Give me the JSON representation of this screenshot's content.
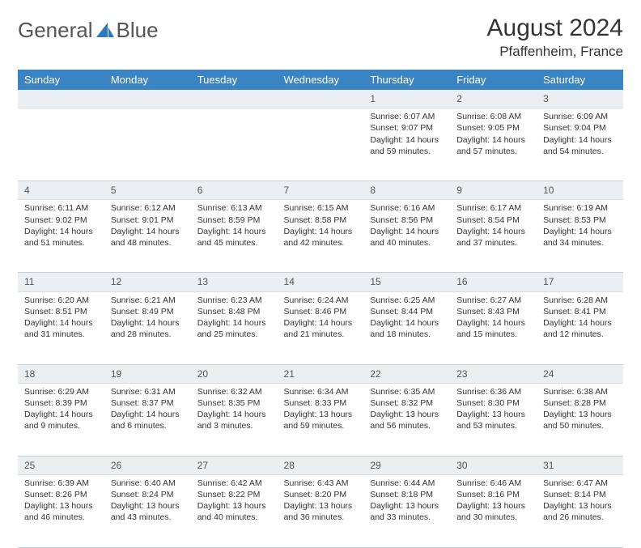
{
  "brand": {
    "word1": "General",
    "word2": "Blue"
  },
  "title": "August 2024",
  "location": "Pfaffenheim, France",
  "colors": {
    "header_bg": "#3a84c4",
    "daynum_bg": "#eceff2",
    "border": "#c9ced4",
    "text": "#333333",
    "logo_accent": "#2e79bd"
  },
  "day_headers": [
    "Sunday",
    "Monday",
    "Tuesday",
    "Wednesday",
    "Thursday",
    "Friday",
    "Saturday"
  ],
  "weeks": [
    [
      null,
      null,
      null,
      null,
      {
        "n": "1",
        "sunrise": "6:07 AM",
        "sunset": "9:07 PM",
        "dl": "14 hours and 59 minutes."
      },
      {
        "n": "2",
        "sunrise": "6:08 AM",
        "sunset": "9:05 PM",
        "dl": "14 hours and 57 minutes."
      },
      {
        "n": "3",
        "sunrise": "6:09 AM",
        "sunset": "9:04 PM",
        "dl": "14 hours and 54 minutes."
      }
    ],
    [
      {
        "n": "4",
        "sunrise": "6:11 AM",
        "sunset": "9:02 PM",
        "dl": "14 hours and 51 minutes."
      },
      {
        "n": "5",
        "sunrise": "6:12 AM",
        "sunset": "9:01 PM",
        "dl": "14 hours and 48 minutes."
      },
      {
        "n": "6",
        "sunrise": "6:13 AM",
        "sunset": "8:59 PM",
        "dl": "14 hours and 45 minutes."
      },
      {
        "n": "7",
        "sunrise": "6:15 AM",
        "sunset": "8:58 PM",
        "dl": "14 hours and 42 minutes."
      },
      {
        "n": "8",
        "sunrise": "6:16 AM",
        "sunset": "8:56 PM",
        "dl": "14 hours and 40 minutes."
      },
      {
        "n": "9",
        "sunrise": "6:17 AM",
        "sunset": "8:54 PM",
        "dl": "14 hours and 37 minutes."
      },
      {
        "n": "10",
        "sunrise": "6:19 AM",
        "sunset": "8:53 PM",
        "dl": "14 hours and 34 minutes."
      }
    ],
    [
      {
        "n": "11",
        "sunrise": "6:20 AM",
        "sunset": "8:51 PM",
        "dl": "14 hours and 31 minutes."
      },
      {
        "n": "12",
        "sunrise": "6:21 AM",
        "sunset": "8:49 PM",
        "dl": "14 hours and 28 minutes."
      },
      {
        "n": "13",
        "sunrise": "6:23 AM",
        "sunset": "8:48 PM",
        "dl": "14 hours and 25 minutes."
      },
      {
        "n": "14",
        "sunrise": "6:24 AM",
        "sunset": "8:46 PM",
        "dl": "14 hours and 21 minutes."
      },
      {
        "n": "15",
        "sunrise": "6:25 AM",
        "sunset": "8:44 PM",
        "dl": "14 hours and 18 minutes."
      },
      {
        "n": "16",
        "sunrise": "6:27 AM",
        "sunset": "8:43 PM",
        "dl": "14 hours and 15 minutes."
      },
      {
        "n": "17",
        "sunrise": "6:28 AM",
        "sunset": "8:41 PM",
        "dl": "14 hours and 12 minutes."
      }
    ],
    [
      {
        "n": "18",
        "sunrise": "6:29 AM",
        "sunset": "8:39 PM",
        "dl": "14 hours and 9 minutes."
      },
      {
        "n": "19",
        "sunrise": "6:31 AM",
        "sunset": "8:37 PM",
        "dl": "14 hours and 6 minutes."
      },
      {
        "n": "20",
        "sunrise": "6:32 AM",
        "sunset": "8:35 PM",
        "dl": "14 hours and 3 minutes."
      },
      {
        "n": "21",
        "sunrise": "6:34 AM",
        "sunset": "8:33 PM",
        "dl": "13 hours and 59 minutes."
      },
      {
        "n": "22",
        "sunrise": "6:35 AM",
        "sunset": "8:32 PM",
        "dl": "13 hours and 56 minutes."
      },
      {
        "n": "23",
        "sunrise": "6:36 AM",
        "sunset": "8:30 PM",
        "dl": "13 hours and 53 minutes."
      },
      {
        "n": "24",
        "sunrise": "6:38 AM",
        "sunset": "8:28 PM",
        "dl": "13 hours and 50 minutes."
      }
    ],
    [
      {
        "n": "25",
        "sunrise": "6:39 AM",
        "sunset": "8:26 PM",
        "dl": "13 hours and 46 minutes."
      },
      {
        "n": "26",
        "sunrise": "6:40 AM",
        "sunset": "8:24 PM",
        "dl": "13 hours and 43 minutes."
      },
      {
        "n": "27",
        "sunrise": "6:42 AM",
        "sunset": "8:22 PM",
        "dl": "13 hours and 40 minutes."
      },
      {
        "n": "28",
        "sunrise": "6:43 AM",
        "sunset": "8:20 PM",
        "dl": "13 hours and 36 minutes."
      },
      {
        "n": "29",
        "sunrise": "6:44 AM",
        "sunset": "8:18 PM",
        "dl": "13 hours and 33 minutes."
      },
      {
        "n": "30",
        "sunrise": "6:46 AM",
        "sunset": "8:16 PM",
        "dl": "13 hours and 30 minutes."
      },
      {
        "n": "31",
        "sunrise": "6:47 AM",
        "sunset": "8:14 PM",
        "dl": "13 hours and 26 minutes."
      }
    ]
  ],
  "labels": {
    "sunrise": "Sunrise:",
    "sunset": "Sunset:",
    "daylight": "Daylight:"
  }
}
